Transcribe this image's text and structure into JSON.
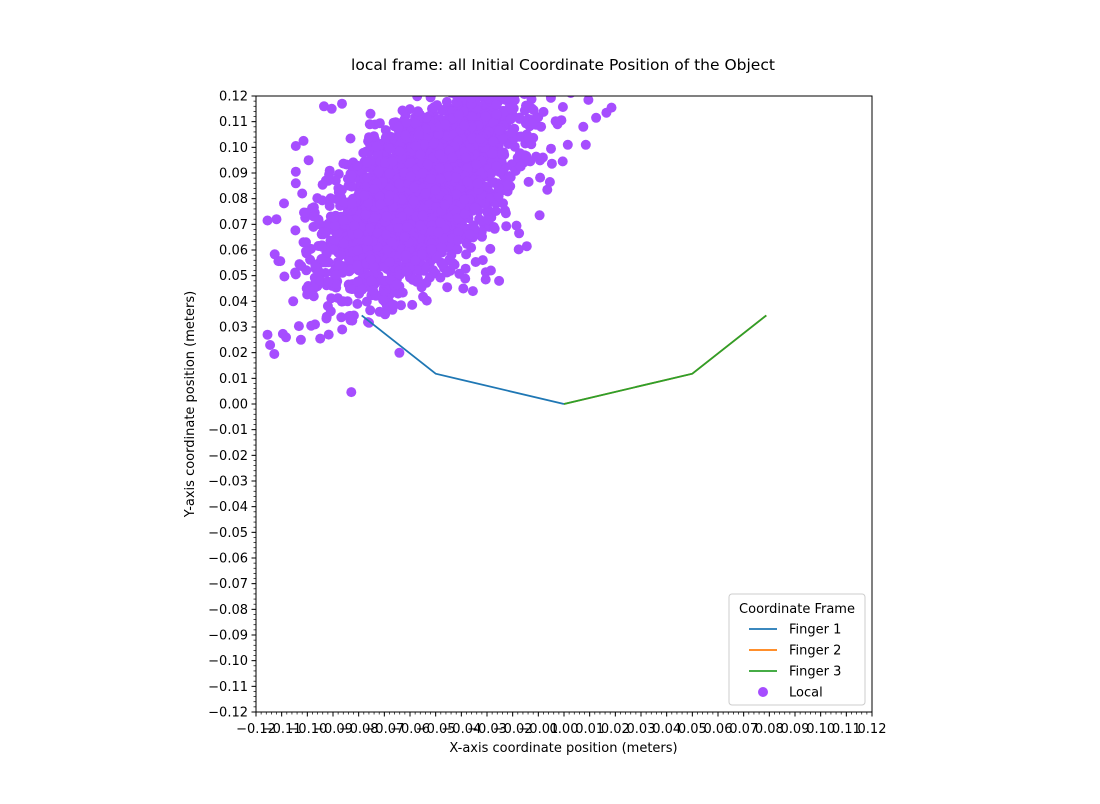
{
  "chart_data": {
    "type": "scatter",
    "title": "local frame: all Initial Coordinate Position of the Object",
    "xlabel": "X-axis coordinate position (meters)",
    "ylabel": "Y-axis coordinate position (meters)",
    "xlim": [
      -0.12,
      0.12
    ],
    "ylim": [
      -0.12,
      0.12
    ],
    "xticks": [
      "−0.12",
      "−0.11",
      "−0.10",
      "−0.09",
      "−0.08",
      "−0.07",
      "−0.06",
      "−0.05",
      "−0.04",
      "−0.03",
      "−0.02",
      "−0.01",
      "0.00",
      "0.01",
      "0.02",
      "0.03",
      "0.04",
      "0.05",
      "0.06",
      "0.07",
      "0.08",
      "0.09",
      "0.10",
      "0.11",
      "0.12"
    ],
    "yticks": [
      "−0.12",
      "−0.11",
      "−0.10",
      "−0.09",
      "−0.08",
      "−0.07",
      "−0.06",
      "−0.05",
      "−0.04",
      "−0.03",
      "−0.02",
      "−0.01",
      "0.00",
      "0.01",
      "0.02",
      "0.03",
      "0.04",
      "0.05",
      "0.06",
      "0.07",
      "0.08",
      "0.09",
      "0.10",
      "0.11",
      "0.12"
    ],
    "grid": false,
    "legend": {
      "title": "Coordinate Frame",
      "placement": "lower-right"
    },
    "series": [
      {
        "name": "Finger 1",
        "kind": "line",
        "color": "#1f77b4",
        "points": [
          [
            0,
            0
          ],
          [
            -0.05,
            0.0118
          ],
          [
            -0.0788,
            0.0345
          ]
        ]
      },
      {
        "name": "Finger 2",
        "kind": "line",
        "color": "#ff7f0e",
        "points": [
          [
            0,
            0
          ],
          [
            0.05,
            0.0118
          ],
          [
            0.0788,
            0.0345
          ]
        ]
      },
      {
        "name": "Finger 3",
        "kind": "line",
        "color": "#2ca02c",
        "points": [
          [
            0,
            0
          ],
          [
            0.05,
            0.0118
          ],
          [
            0.0788,
            0.0345
          ]
        ]
      },
      {
        "name": "Local",
        "kind": "scatter",
        "color": "#a64dff",
        "cluster": {
          "center": [
            -0.055,
            0.083
          ],
          "std": [
            0.018,
            0.018
          ],
          "correlation": 0.55,
          "count": 3000
        },
        "outliers": [
          [
            -0.112,
            0.072
          ],
          [
            -0.1155,
            0.0715
          ],
          [
            -0.1155,
            0.027
          ],
          [
            -0.1145,
            0.023
          ],
          [
            -0.1025,
            0.025
          ],
          [
            -0.095,
            0.0255
          ],
          [
            -0.097,
            0.031
          ],
          [
            -0.0985,
            0.0305
          ],
          [
            -0.1055,
            0.04
          ],
          [
            -0.1045,
            0.0505
          ],
          [
            -0.1045,
            0.0905
          ],
          [
            -0.1045,
            0.086
          ],
          [
            -0.1045,
            0.1005
          ],
          [
            -0.102,
            0.082
          ],
          [
            -0.1015,
            0.1025
          ],
          [
            -0.1005,
            0.063
          ],
          [
            -0.1015,
            0.063
          ],
          [
            -0.1005,
            0.0595
          ],
          [
            -0.0975,
            0.045
          ],
          [
            -0.0975,
            0.042
          ],
          [
            -0.0945,
            0.0565
          ],
          [
            -0.0935,
            0.116
          ],
          [
            -0.0905,
            0.115
          ],
          [
            -0.0865,
            0.117
          ],
          [
            -0.0825,
            0.0325
          ],
          [
            -0.0805,
            0.039
          ],
          [
            -0.0755,
            0.0365
          ],
          [
            -0.0705,
            0.0405
          ],
          [
            -0.0635,
            0.0385
          ],
          [
            -0.0555,
            0.0455
          ],
          [
            -0.0455,
            0.0455
          ],
          [
            -0.0355,
            0.044
          ],
          [
            -0.0305,
            0.0485
          ],
          [
            -0.0285,
            0.052
          ],
          [
            -0.0145,
            0.0615
          ],
          [
            -0.0095,
            0.0735
          ],
          [
            -0.0005,
            0.0945
          ],
          [
            0.0015,
            0.101
          ],
          [
            0.0085,
            0.101
          ],
          [
            0.0075,
            0.108
          ],
          [
            0.0125,
            0.1115
          ],
          [
            0.0165,
            0.1135
          ],
          [
            0.0185,
            0.1155
          ],
          [
            0.0095,
            0.1185
          ],
          [
            -0.0065,
            0.0835
          ],
          [
            -0.0055,
            0.0865
          ],
          [
            -0.0175,
            0.0665
          ],
          [
            -0.0185,
            0.0695
          ],
          [
            -0.0435,
            0.096
          ],
          [
            -0.1005,
            0.0745
          ],
          [
            -0.0975,
            0.073
          ],
          [
            -0.0995,
            0.095
          ]
        ]
      }
    ]
  }
}
